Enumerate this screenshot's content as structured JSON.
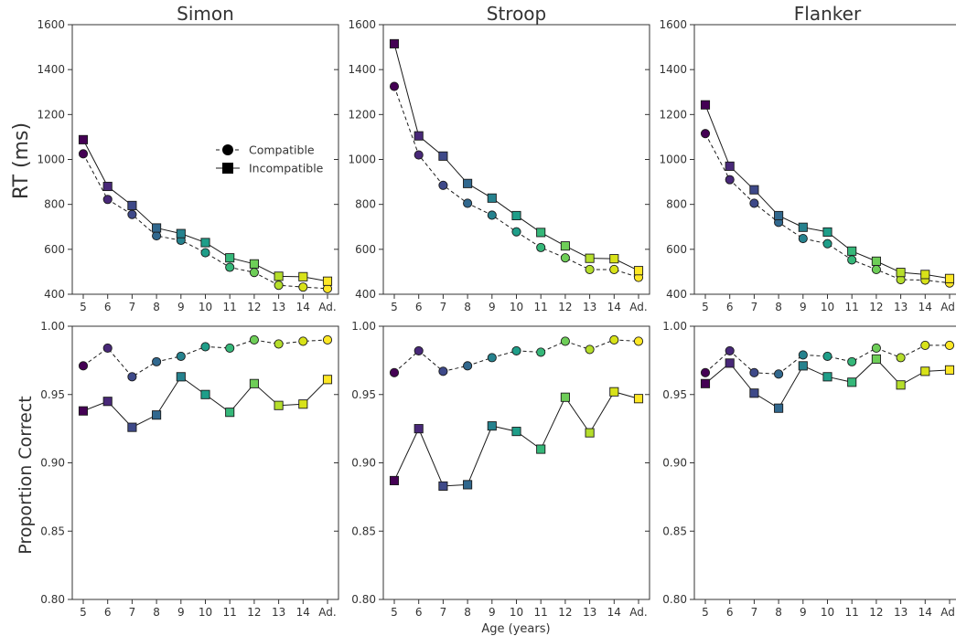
{
  "chart_data": {
    "type": "line",
    "xlabel": "Age (years)",
    "categories": [
      "5",
      "6",
      "7",
      "8",
      "9",
      "10",
      "11",
      "12",
      "13",
      "14",
      "Ad."
    ],
    "legend": {
      "placement": "upper-right of Simon RT panel",
      "entries": [
        {
          "label": "Compatible",
          "marker": "circle",
          "linestyle": "dashed"
        },
        {
          "label": "Incompatible",
          "marker": "square",
          "linestyle": "solid"
        }
      ]
    },
    "point_colors": [
      "#440154",
      "#482878",
      "#3e4989",
      "#31688e",
      "#26828e",
      "#1f9e89",
      "#35b779",
      "#6ece58",
      "#b5de2b",
      "#d8e219",
      "#fde725"
    ],
    "rows": [
      {
        "ylabel": "RT (ms)",
        "ylim": [
          400,
          1600
        ],
        "yticks": [
          "400",
          "600",
          "800",
          "1000",
          "1200",
          "1400",
          "1600"
        ],
        "panels": [
          {
            "title": "Simon",
            "series": [
              {
                "name": "Compatible",
                "values": [
                  1025,
                  822,
                  755,
                  660,
                  640,
                  585,
                  520,
                  497,
                  440,
                  432,
                  425
                ]
              },
              {
                "name": "Incompatible",
                "values": [
                  1088,
                  880,
                  795,
                  695,
                  670,
                  630,
                  562,
                  535,
                  480,
                  478,
                  458
                ]
              }
            ]
          },
          {
            "title": "Stroop",
            "series": [
              {
                "name": "Compatible",
                "values": [
                  1325,
                  1020,
                  885,
                  805,
                  752,
                  678,
                  608,
                  562,
                  510,
                  510,
                  475
                ]
              },
              {
                "name": "Incompatible",
                "values": [
                  1515,
                  1105,
                  1015,
                  893,
                  828,
                  750,
                  675,
                  615,
                  560,
                  558,
                  505
                ]
              }
            ]
          },
          {
            "title": "Flanker",
            "series": [
              {
                "name": "Compatible",
                "values": [
                  1115,
                  910,
                  805,
                  720,
                  648,
                  625,
                  553,
                  510,
                  465,
                  463,
                  450
                ]
              },
              {
                "name": "Incompatible",
                "values": [
                  1243,
                  970,
                  865,
                  750,
                  698,
                  677,
                  592,
                  547,
                  497,
                  488,
                  470
                ]
              }
            ]
          }
        ]
      },
      {
        "ylabel": "Proportion Correct",
        "ylim": [
          0.8,
          1.0
        ],
        "yticks": [
          "0.80",
          "0.85",
          "0.90",
          "0.95",
          "1.00"
        ],
        "panels": [
          {
            "title": "",
            "series": [
              {
                "name": "Compatible",
                "values": [
                  0.971,
                  0.984,
                  0.963,
                  0.974,
                  0.978,
                  0.985,
                  0.984,
                  0.99,
                  0.987,
                  0.989,
                  0.99
                ]
              },
              {
                "name": "Incompatible",
                "values": [
                  0.938,
                  0.945,
                  0.926,
                  0.935,
                  0.963,
                  0.95,
                  0.937,
                  0.958,
                  0.942,
                  0.943,
                  0.961
                ]
              }
            ]
          },
          {
            "title": "",
            "series": [
              {
                "name": "Compatible",
                "values": [
                  0.966,
                  0.982,
                  0.967,
                  0.971,
                  0.977,
                  0.982,
                  0.981,
                  0.989,
                  0.983,
                  0.99,
                  0.989
                ]
              },
              {
                "name": "Incompatible",
                "values": [
                  0.887,
                  0.925,
                  0.883,
                  0.884,
                  0.927,
                  0.923,
                  0.91,
                  0.948,
                  0.922,
                  0.952,
                  0.947
                ]
              }
            ]
          },
          {
            "title": "",
            "series": [
              {
                "name": "Compatible",
                "values": [
                  0.966,
                  0.982,
                  0.966,
                  0.965,
                  0.979,
                  0.978,
                  0.974,
                  0.984,
                  0.977,
                  0.986,
                  0.986
                ]
              },
              {
                "name": "Incompatible",
                "values": [
                  0.958,
                  0.973,
                  0.951,
                  0.94,
                  0.971,
                  0.963,
                  0.959,
                  0.976,
                  0.957,
                  0.967,
                  0.968
                ]
              }
            ]
          }
        ]
      }
    ]
  }
}
